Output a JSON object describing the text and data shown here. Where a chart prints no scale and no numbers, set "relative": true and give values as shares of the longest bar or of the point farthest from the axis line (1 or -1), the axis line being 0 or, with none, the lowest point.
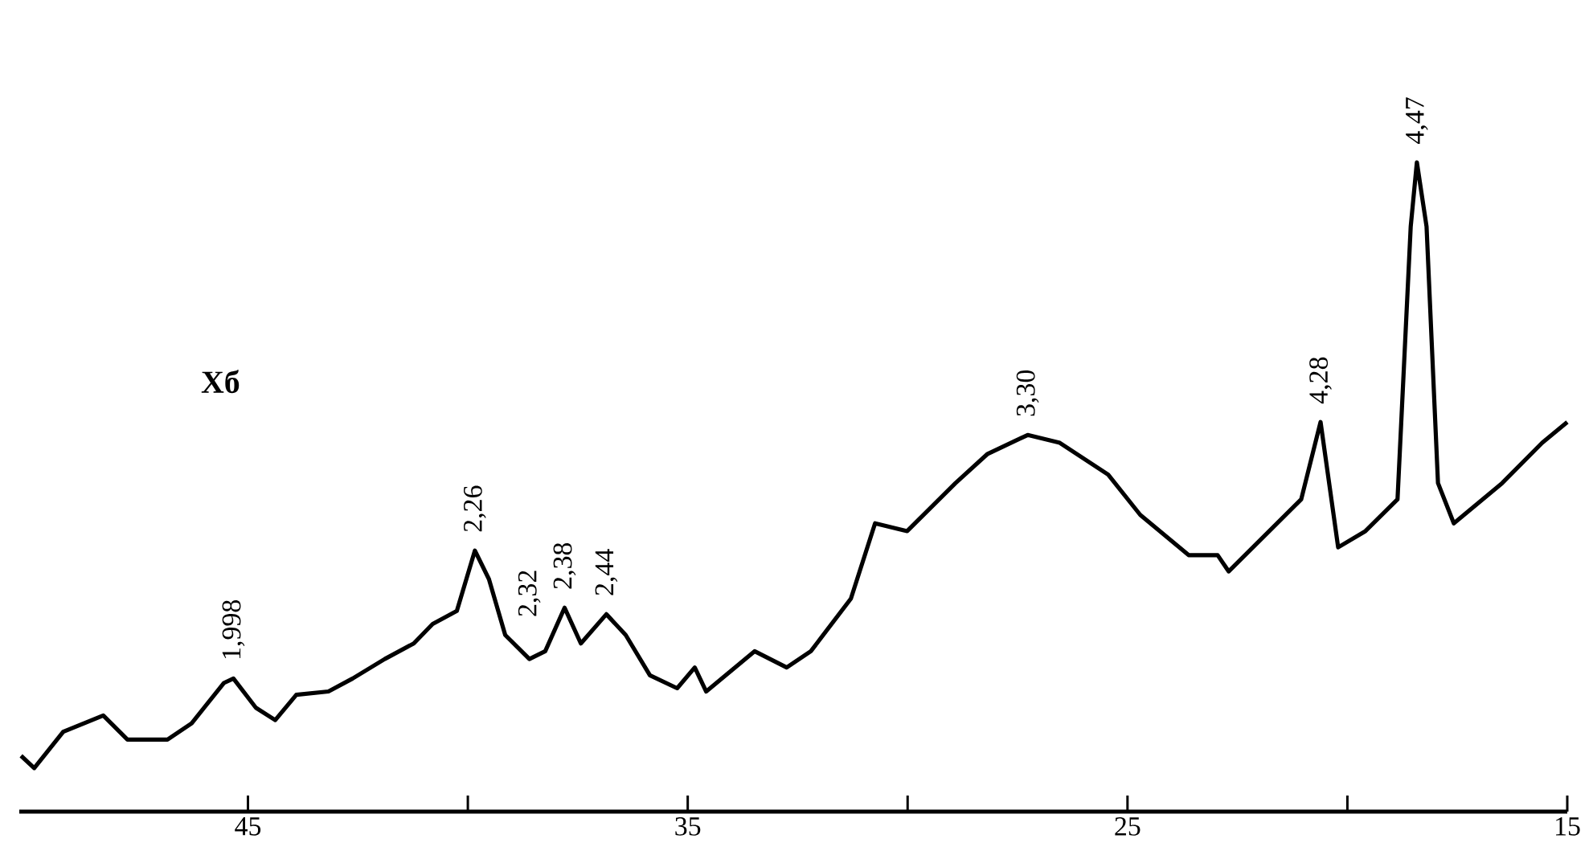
{
  "chart_data": {
    "type": "line",
    "relative": true,
    "x": [
      50.16,
      49.86,
      49.2,
      48.29,
      47.74,
      46.83,
      46.28,
      45.55,
      45.33,
      44.82,
      44.38,
      43.9,
      43.17,
      42.62,
      41.89,
      41.23,
      40.8,
      40.25,
      39.84,
      39.52,
      39.15,
      38.6,
      38.24,
      37.8,
      37.43,
      36.85,
      36.41,
      35.86,
      35.24,
      34.84,
      34.58,
      33.48,
      32.75,
      32.2,
      31.29,
      30.74,
      30.01,
      28.91,
      28.18,
      27.27,
      26.54,
      25.44,
      24.71,
      23.61,
      22.95,
      22.7,
      21.6,
      21.05,
      20.61,
      20.21,
      19.59,
      18.86,
      18.56,
      18.42,
      18.2,
      17.94,
      17.58,
      16.48,
      15.57,
      15.0
    ],
    "series": [
      {
        "color": "#000000",
        "values": [
          0.086,
          0.067,
          0.123,
          0.148,
          0.111,
          0.111,
          0.136,
          0.198,
          0.205,
          0.16,
          0.141,
          0.18,
          0.185,
          0.205,
          0.235,
          0.259,
          0.289,
          0.309,
          0.402,
          0.358,
          0.272,
          0.235,
          0.247,
          0.314,
          0.259,
          0.304,
          0.272,
          0.21,
          0.19,
          0.222,
          0.185,
          0.247,
          0.222,
          0.247,
          0.328,
          0.444,
          0.432,
          0.506,
          0.551,
          0.58,
          0.568,
          0.519,
          0.457,
          0.395,
          0.395,
          0.37,
          0.444,
          0.481,
          0.6,
          0.407,
          0.432,
          0.481,
          0.901,
          1.0,
          0.901,
          0.506,
          0.444,
          0.506,
          0.568,
          0.6
        ]
      }
    ],
    "xlim": [
      50.2,
      15
    ],
    "xticks": [
      45,
      {
        "value": 40,
        "label": null
      },
      35,
      {
        "value": 30,
        "label": null
      },
      25,
      {
        "value": 20,
        "label": null
      },
      15
    ],
    "annotations": [
      "**Хб**",
      {
        "text": "1,998",
        "x": 45.33,
        "y": 0.205
      },
      {
        "text": "2,26",
        "x": 39.84,
        "y": 0.402
      },
      {
        "text": "2,32",
        "x": 38.6,
        "y": 0.235
      },
      {
        "text": "2,38",
        "x": 37.8,
        "y": 0.314
      },
      {
        "text": "2,44",
        "x": 36.85,
        "y": 0.304
      },
      {
        "text": "3,30",
        "x": 27.27,
        "y": 0.58
      },
      {
        "text": "4,28",
        "x": 20.61,
        "y": 0.6
      },
      {
        "text": "4,47",
        "x": 18.42,
        "y": 1.0
      }
    ]
  }
}
